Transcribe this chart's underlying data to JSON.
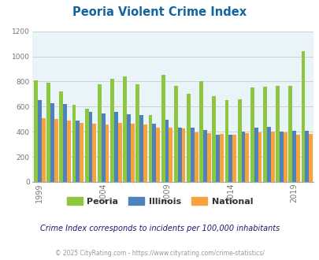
{
  "title": "Peoria Violent Crime Index",
  "subtitle": "Crime Index corresponds to incidents per 100,000 inhabitants",
  "footer": "© 2025 CityRating.com - https://www.cityrating.com/crime-statistics/",
  "ylim": [
    0,
    1200
  ],
  "yticks": [
    0,
    200,
    400,
    600,
    800,
    1000,
    1200
  ],
  "xtick_labels": [
    "1999",
    "2004",
    "2009",
    "2014",
    "2019"
  ],
  "colors": {
    "peoria": "#8dc63f",
    "illinois": "#4f81bd",
    "national": "#f9a13a",
    "bg_chart": "#e8f4f8",
    "bg_fig": "#ffffff",
    "title": "#1464a0",
    "subtitle": "#1a1a6e",
    "footer": "#999999",
    "grid": "#cccccc",
    "axis": "#aaaaaa",
    "tick": "#777777"
  },
  "years": [
    1999,
    2000,
    2001,
    2002,
    2003,
    2004,
    2005,
    2006,
    2007,
    2008,
    2009,
    2010,
    2011,
    2012,
    2013,
    2014,
    2015,
    2016,
    2017,
    2018,
    2019,
    2020
  ],
  "peoria": [
    810,
    790,
    720,
    615,
    580,
    775,
    820,
    840,
    780,
    530,
    855,
    765,
    700,
    800,
    685,
    650,
    660,
    755,
    760,
    765,
    765,
    1040
  ],
  "illinois": [
    650,
    625,
    620,
    490,
    555,
    545,
    555,
    540,
    535,
    465,
    495,
    435,
    430,
    415,
    375,
    375,
    400,
    435,
    440,
    400,
    405,
    405
  ],
  "national": [
    510,
    500,
    490,
    470,
    465,
    460,
    470,
    465,
    460,
    435,
    430,
    425,
    395,
    390,
    380,
    375,
    390,
    395,
    400,
    395,
    375,
    380
  ],
  "legend": [
    "Peoria",
    "Illinois",
    "National"
  ]
}
